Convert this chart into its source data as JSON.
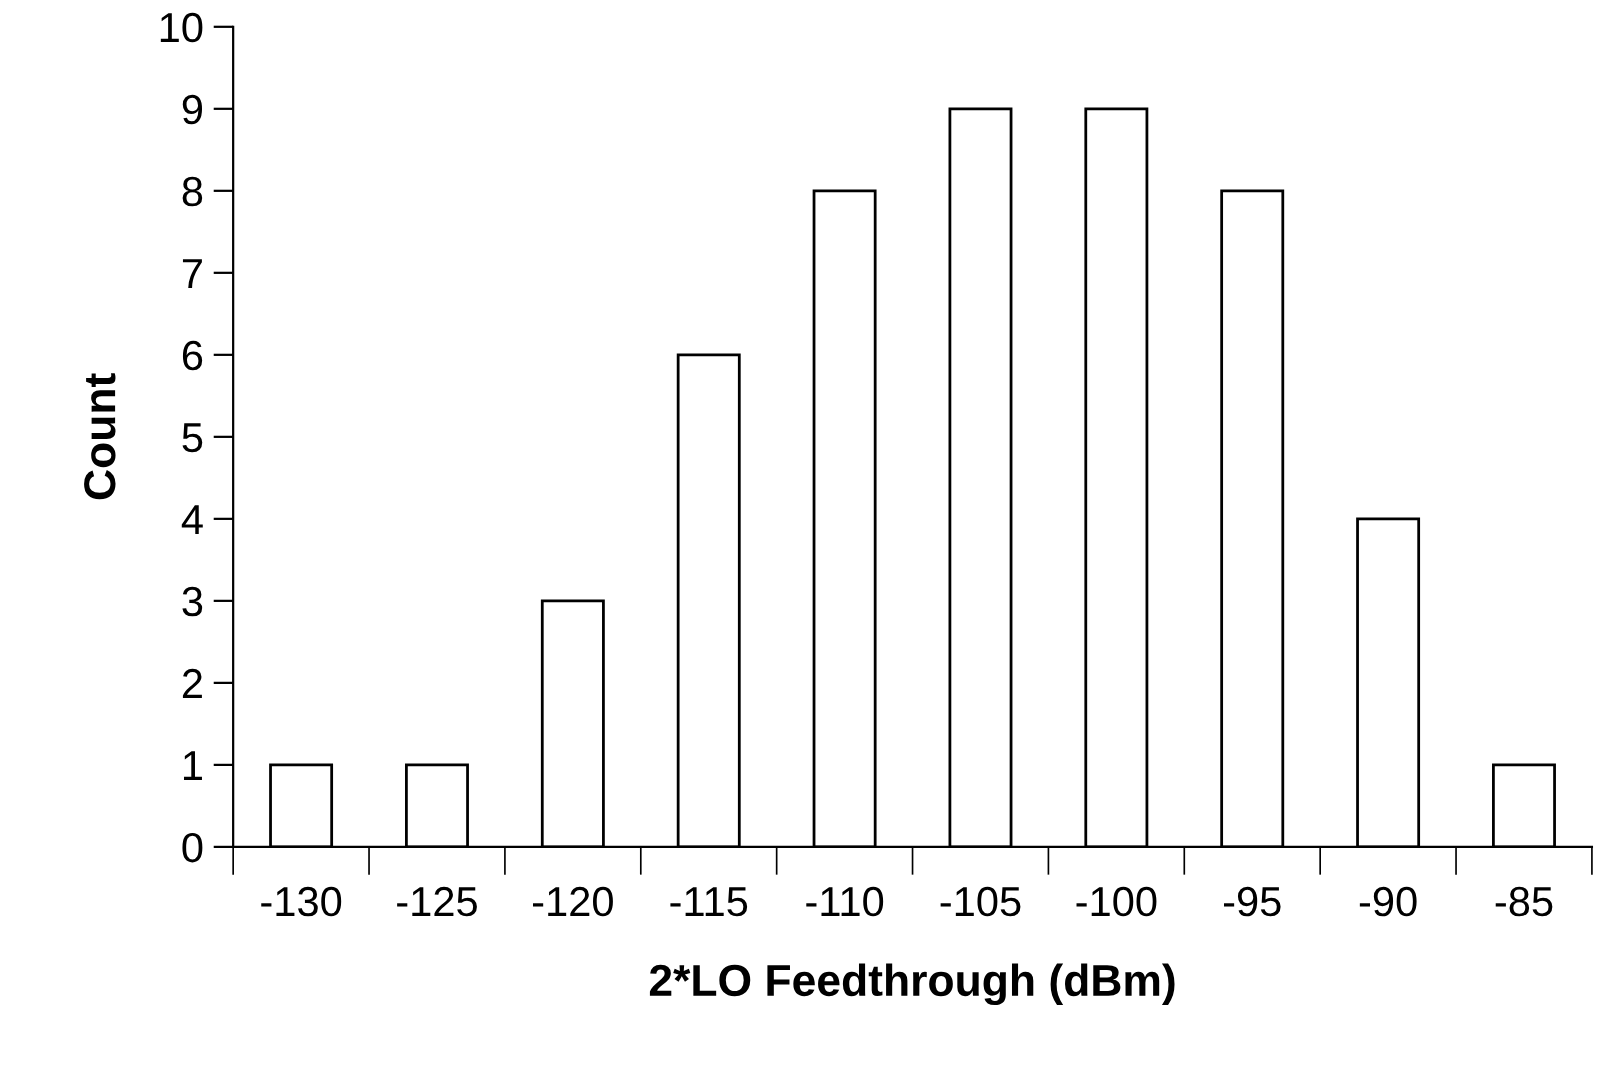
{
  "chart_data": {
    "type": "bar",
    "categories": [
      "-130",
      "-125",
      "-120",
      "-115",
      "-110",
      "-105",
      "-100",
      "-95",
      "-90",
      "-85"
    ],
    "values": [
      1,
      1,
      3,
      6,
      8,
      9,
      9,
      8,
      4,
      1
    ],
    "color": "#ffffff",
    "xlabel": "2*LO Feedthrough (dBm)",
    "ylabel": "Count",
    "ylim": [
      0,
      10
    ],
    "yticks": [
      0,
      1,
      2,
      3,
      4,
      5,
      6,
      7,
      8,
      9,
      10
    ],
    "grid": false
  }
}
